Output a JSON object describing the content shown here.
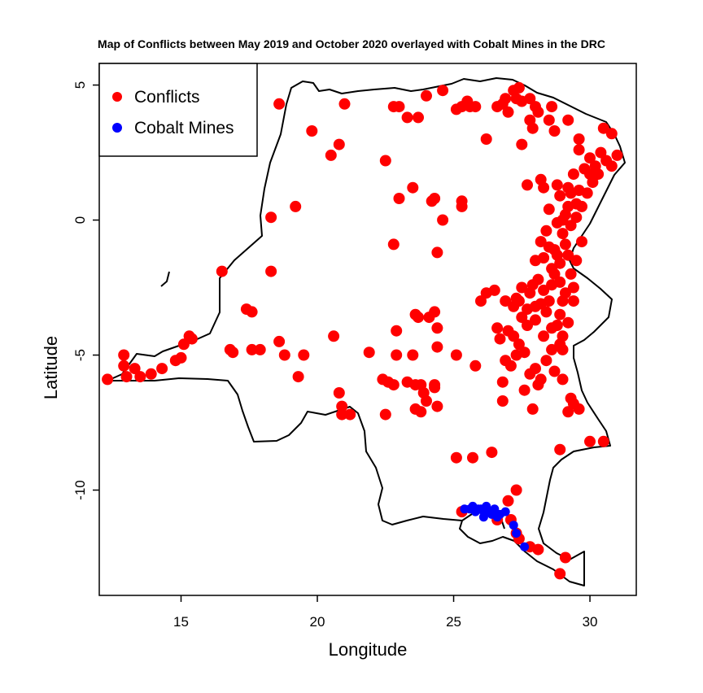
{
  "chart_data": {
    "type": "scatter",
    "title": "Map of Conflicts between May 2019 and October 2020 overlayed with Cobalt Mines in the DRC",
    "xlabel": "Longitude",
    "ylabel": "Latitude",
    "xlim": [
      12,
      31.7
    ],
    "ylim": [
      -13.9,
      5.8
    ],
    "xticks": [
      15,
      20,
      25,
      30
    ],
    "yticks": [
      5,
      0,
      -5,
      -10
    ],
    "legend": {
      "position": "top-left",
      "entries": [
        "Conflicts",
        "Cobalt Mines"
      ]
    },
    "colors": {
      "conflicts": "#ff0000",
      "cobalt": "#0000ff",
      "border": "#000000"
    },
    "series": [
      {
        "name": "Conflicts",
        "color": "#ff0000",
        "points": [
          [
            12.3,
            -5.9
          ],
          [
            12.9,
            -5.0
          ],
          [
            12.9,
            -5.4
          ],
          [
            13.0,
            -5.8
          ],
          [
            13.3,
            -5.5
          ],
          [
            13.5,
            -5.8
          ],
          [
            13.9,
            -5.7
          ],
          [
            14.3,
            -5.5
          ],
          [
            14.8,
            -5.2
          ],
          [
            15.0,
            -5.1
          ],
          [
            15.1,
            -4.6
          ],
          [
            15.3,
            -4.3
          ],
          [
            15.4,
            -4.4
          ],
          [
            16.5,
            -1.9
          ],
          [
            16.8,
            -4.8
          ],
          [
            16.9,
            -4.9
          ],
          [
            17.4,
            -3.3
          ],
          [
            17.6,
            -3.4
          ],
          [
            17.6,
            -4.8
          ],
          [
            17.9,
            -4.8
          ],
          [
            18.3,
            0.1
          ],
          [
            18.3,
            -1.9
          ],
          [
            18.6,
            4.3
          ],
          [
            18.6,
            -4.5
          ],
          [
            18.8,
            -5.0
          ],
          [
            19.2,
            0.5
          ],
          [
            19.3,
            -5.8
          ],
          [
            19.5,
            -5.0
          ],
          [
            19.8,
            3.3
          ],
          [
            20.5,
            2.4
          ],
          [
            20.6,
            -4.3
          ],
          [
            20.8,
            2.8
          ],
          [
            20.8,
            -6.4
          ],
          [
            20.9,
            -6.9
          ],
          [
            20.9,
            -7.2
          ],
          [
            21.0,
            4.3
          ],
          [
            21.2,
            -7.2
          ],
          [
            21.9,
            -4.9
          ],
          [
            22.4,
            -5.9
          ],
          [
            22.5,
            2.2
          ],
          [
            22.5,
            -7.2
          ],
          [
            22.6,
            -6.0
          ],
          [
            22.8,
            -6.1
          ],
          [
            22.8,
            -0.9
          ],
          [
            22.8,
            4.2
          ],
          [
            22.9,
            -4.1
          ],
          [
            22.9,
            -5.0
          ],
          [
            23.0,
            0.8
          ],
          [
            23.0,
            4.2
          ],
          [
            23.3,
            3.8
          ],
          [
            23.3,
            -6.0
          ],
          [
            23.5,
            -5.0
          ],
          [
            23.5,
            1.2
          ],
          [
            23.6,
            -3.5
          ],
          [
            23.6,
            -6.1
          ],
          [
            23.6,
            -7.0
          ],
          [
            23.7,
            3.8
          ],
          [
            23.7,
            -3.6
          ],
          [
            23.8,
            -6.1
          ],
          [
            23.8,
            -7.1
          ],
          [
            23.9,
            -6.4
          ],
          [
            24.0,
            -6.7
          ],
          [
            24.0,
            4.6
          ],
          [
            24.1,
            -3.6
          ],
          [
            24.2,
            0.7
          ],
          [
            24.3,
            0.8
          ],
          [
            24.3,
            -3.4
          ],
          [
            24.3,
            -6.1
          ],
          [
            24.3,
            -6.2
          ],
          [
            24.4,
            -1.2
          ],
          [
            24.4,
            -4.0
          ],
          [
            24.4,
            -4.7
          ],
          [
            24.4,
            -6.9
          ],
          [
            24.6,
            0.0
          ],
          [
            24.6,
            4.8
          ],
          [
            25.1,
            4.1
          ],
          [
            25.1,
            -5.0
          ],
          [
            25.1,
            -8.8
          ],
          [
            25.3,
            0.7
          ],
          [
            25.3,
            0.5
          ],
          [
            25.3,
            4.2
          ],
          [
            25.5,
            4.4
          ],
          [
            25.6,
            4.2
          ],
          [
            25.7,
            -8.8
          ],
          [
            25.8,
            -5.4
          ],
          [
            25.8,
            4.2
          ],
          [
            26.0,
            -3.0
          ],
          [
            26.2,
            3.0
          ],
          [
            26.2,
            -2.7
          ],
          [
            26.4,
            -8.6
          ],
          [
            26.5,
            -2.6
          ],
          [
            26.6,
            4.2
          ],
          [
            26.6,
            -4.0
          ],
          [
            26.7,
            -4.4
          ],
          [
            26.8,
            4.3
          ],
          [
            26.8,
            -6.0
          ],
          [
            26.8,
            -6.7
          ],
          [
            26.9,
            4.5
          ],
          [
            26.9,
            -5.2
          ],
          [
            27.0,
            4.0
          ],
          [
            27.2,
            4.8
          ],
          [
            27.3,
            4.5
          ],
          [
            27.4,
            4.9
          ],
          [
            27.5,
            2.8
          ],
          [
            27.5,
            4.4
          ],
          [
            27.6,
            -6.3
          ],
          [
            27.7,
            1.3
          ],
          [
            27.8,
            4.5
          ],
          [
            27.8,
            3.7
          ],
          [
            27.9,
            3.4
          ],
          [
            28.0,
            4.2
          ],
          [
            28.1,
            4.0
          ],
          [
            28.2,
            1.5
          ],
          [
            28.3,
            1.2
          ],
          [
            28.5,
            3.7
          ],
          [
            28.6,
            4.2
          ],
          [
            28.7,
            3.3
          ],
          [
            29.2,
            3.7
          ],
          [
            29.6,
            3.0
          ],
          [
            29.6,
            2.6
          ],
          [
            30.0,
            1.7
          ],
          [
            30.5,
            3.4
          ],
          [
            30.8,
            3.2
          ],
          [
            31.0,
            2.4
          ],
          [
            27.9,
            -7.0
          ],
          [
            28.0,
            -5.5
          ],
          [
            28.2,
            -5.9
          ],
          [
            28.4,
            -5.2
          ],
          [
            28.7,
            -5.6
          ],
          [
            28.9,
            -8.5
          ],
          [
            29.0,
            -5.9
          ],
          [
            29.2,
            -7.1
          ],
          [
            29.3,
            -6.6
          ],
          [
            29.4,
            -6.8
          ],
          [
            29.6,
            -7.0
          ],
          [
            30.0,
            -8.2
          ],
          [
            30.5,
            -8.2
          ],
          [
            27.0,
            -10.4
          ],
          [
            27.3,
            -10.0
          ],
          [
            27.3,
            -11.6
          ],
          [
            27.4,
            -11.8
          ],
          [
            27.8,
            -12.1
          ],
          [
            28.1,
            -12.2
          ],
          [
            29.1,
            -12.5
          ],
          [
            28.9,
            -13.1
          ],
          [
            25.3,
            -10.8
          ],
          [
            26.6,
            -11.1
          ],
          [
            27.1,
            -11.1
          ],
          [
            26.9,
            -3.0
          ],
          [
            27.0,
            -4.1
          ],
          [
            27.2,
            -4.3
          ],
          [
            27.4,
            -4.6
          ],
          [
            27.6,
            -4.9
          ],
          [
            27.1,
            -5.4
          ],
          [
            27.3,
            -5.0
          ],
          [
            27.8,
            -5.7
          ],
          [
            28.1,
            -6.1
          ],
          [
            28.3,
            -4.3
          ],
          [
            28.6,
            -4.0
          ],
          [
            28.0,
            -3.7
          ],
          [
            27.3,
            -2.9
          ],
          [
            27.5,
            -2.5
          ],
          [
            27.8,
            -2.7
          ],
          [
            28.1,
            -2.2
          ],
          [
            27.2,
            -3.2
          ],
          [
            27.5,
            -3.6
          ],
          [
            27.7,
            -3.9
          ],
          [
            28.2,
            -0.8
          ],
          [
            28.0,
            -1.5
          ],
          [
            28.4,
            -0.4
          ],
          [
            28.5,
            0.4
          ],
          [
            28.7,
            -1.1
          ],
          [
            28.9,
            -1.6
          ],
          [
            28.6,
            -2.4
          ],
          [
            28.5,
            -3.0
          ],
          [
            28.9,
            -3.5
          ],
          [
            29.0,
            -4.3
          ],
          [
            28.9,
            0.9
          ],
          [
            29.1,
            0.2
          ],
          [
            29.0,
            -0.5
          ],
          [
            29.2,
            1.2
          ],
          [
            29.2,
            -1.3
          ],
          [
            29.3,
            -2.0
          ],
          [
            29.4,
            1.7
          ],
          [
            29.5,
            0.6
          ],
          [
            29.3,
            -0.2
          ],
          [
            29.1,
            -2.7
          ],
          [
            29.4,
            -2.5
          ],
          [
            29.6,
            1.1
          ],
          [
            29.8,
            1.9
          ],
          [
            30.0,
            2.3
          ],
          [
            30.2,
            2.0
          ],
          [
            30.4,
            2.5
          ],
          [
            30.1,
            1.4
          ],
          [
            30.3,
            1.7
          ],
          [
            30.6,
            2.2
          ],
          [
            30.8,
            2.0
          ],
          [
            29.7,
            -0.8
          ],
          [
            29.5,
            -1.5
          ],
          [
            28.8,
            -3.9
          ],
          [
            28.6,
            -4.8
          ],
          [
            28.9,
            -4.6
          ],
          [
            28.4,
            -3.4
          ],
          [
            28.2,
            -3.1
          ],
          [
            28.7,
            -2.0
          ],
          [
            28.6,
            -1.8
          ],
          [
            28.8,
            -0.1
          ],
          [
            29.0,
            0.0
          ],
          [
            29.1,
            -0.9
          ],
          [
            29.2,
            0.5
          ],
          [
            28.8,
            1.3
          ],
          [
            29.3,
            1.0
          ],
          [
            29.5,
            0.1
          ],
          [
            29.7,
            0.5
          ],
          [
            29.9,
            1.0
          ],
          [
            29.4,
            -3.0
          ],
          [
            29.0,
            -3.0
          ],
          [
            28.0,
            -3.2
          ],
          [
            27.7,
            -3.3
          ],
          [
            27.4,
            -3.0
          ],
          [
            27.9,
            -2.4
          ],
          [
            28.3,
            -1.4
          ],
          [
            28.3,
            -2.6
          ],
          [
            28.8,
            -1.3
          ],
          [
            28.5,
            -1.0
          ],
          [
            28.9,
            -2.3
          ],
          [
            29.2,
            -3.8
          ],
          [
            29.0,
            -4.8
          ]
        ]
      },
      {
        "name": "Cobalt Mines",
        "color": "#0000ff",
        "points": [
          [
            25.4,
            -10.7
          ],
          [
            25.6,
            -10.7
          ],
          [
            25.7,
            -10.6
          ],
          [
            25.8,
            -10.8
          ],
          [
            25.9,
            -10.7
          ],
          [
            26.0,
            -10.7
          ],
          [
            26.1,
            -10.8
          ],
          [
            26.1,
            -11.0
          ],
          [
            26.2,
            -10.6
          ],
          [
            26.3,
            -10.8
          ],
          [
            26.4,
            -10.9
          ],
          [
            26.5,
            -10.7
          ],
          [
            26.6,
            -11.0
          ],
          [
            26.7,
            -10.9
          ],
          [
            26.9,
            -10.8
          ],
          [
            27.2,
            -11.3
          ],
          [
            27.3,
            -11.6
          ],
          [
            27.6,
            -12.1
          ]
        ]
      }
    ]
  }
}
